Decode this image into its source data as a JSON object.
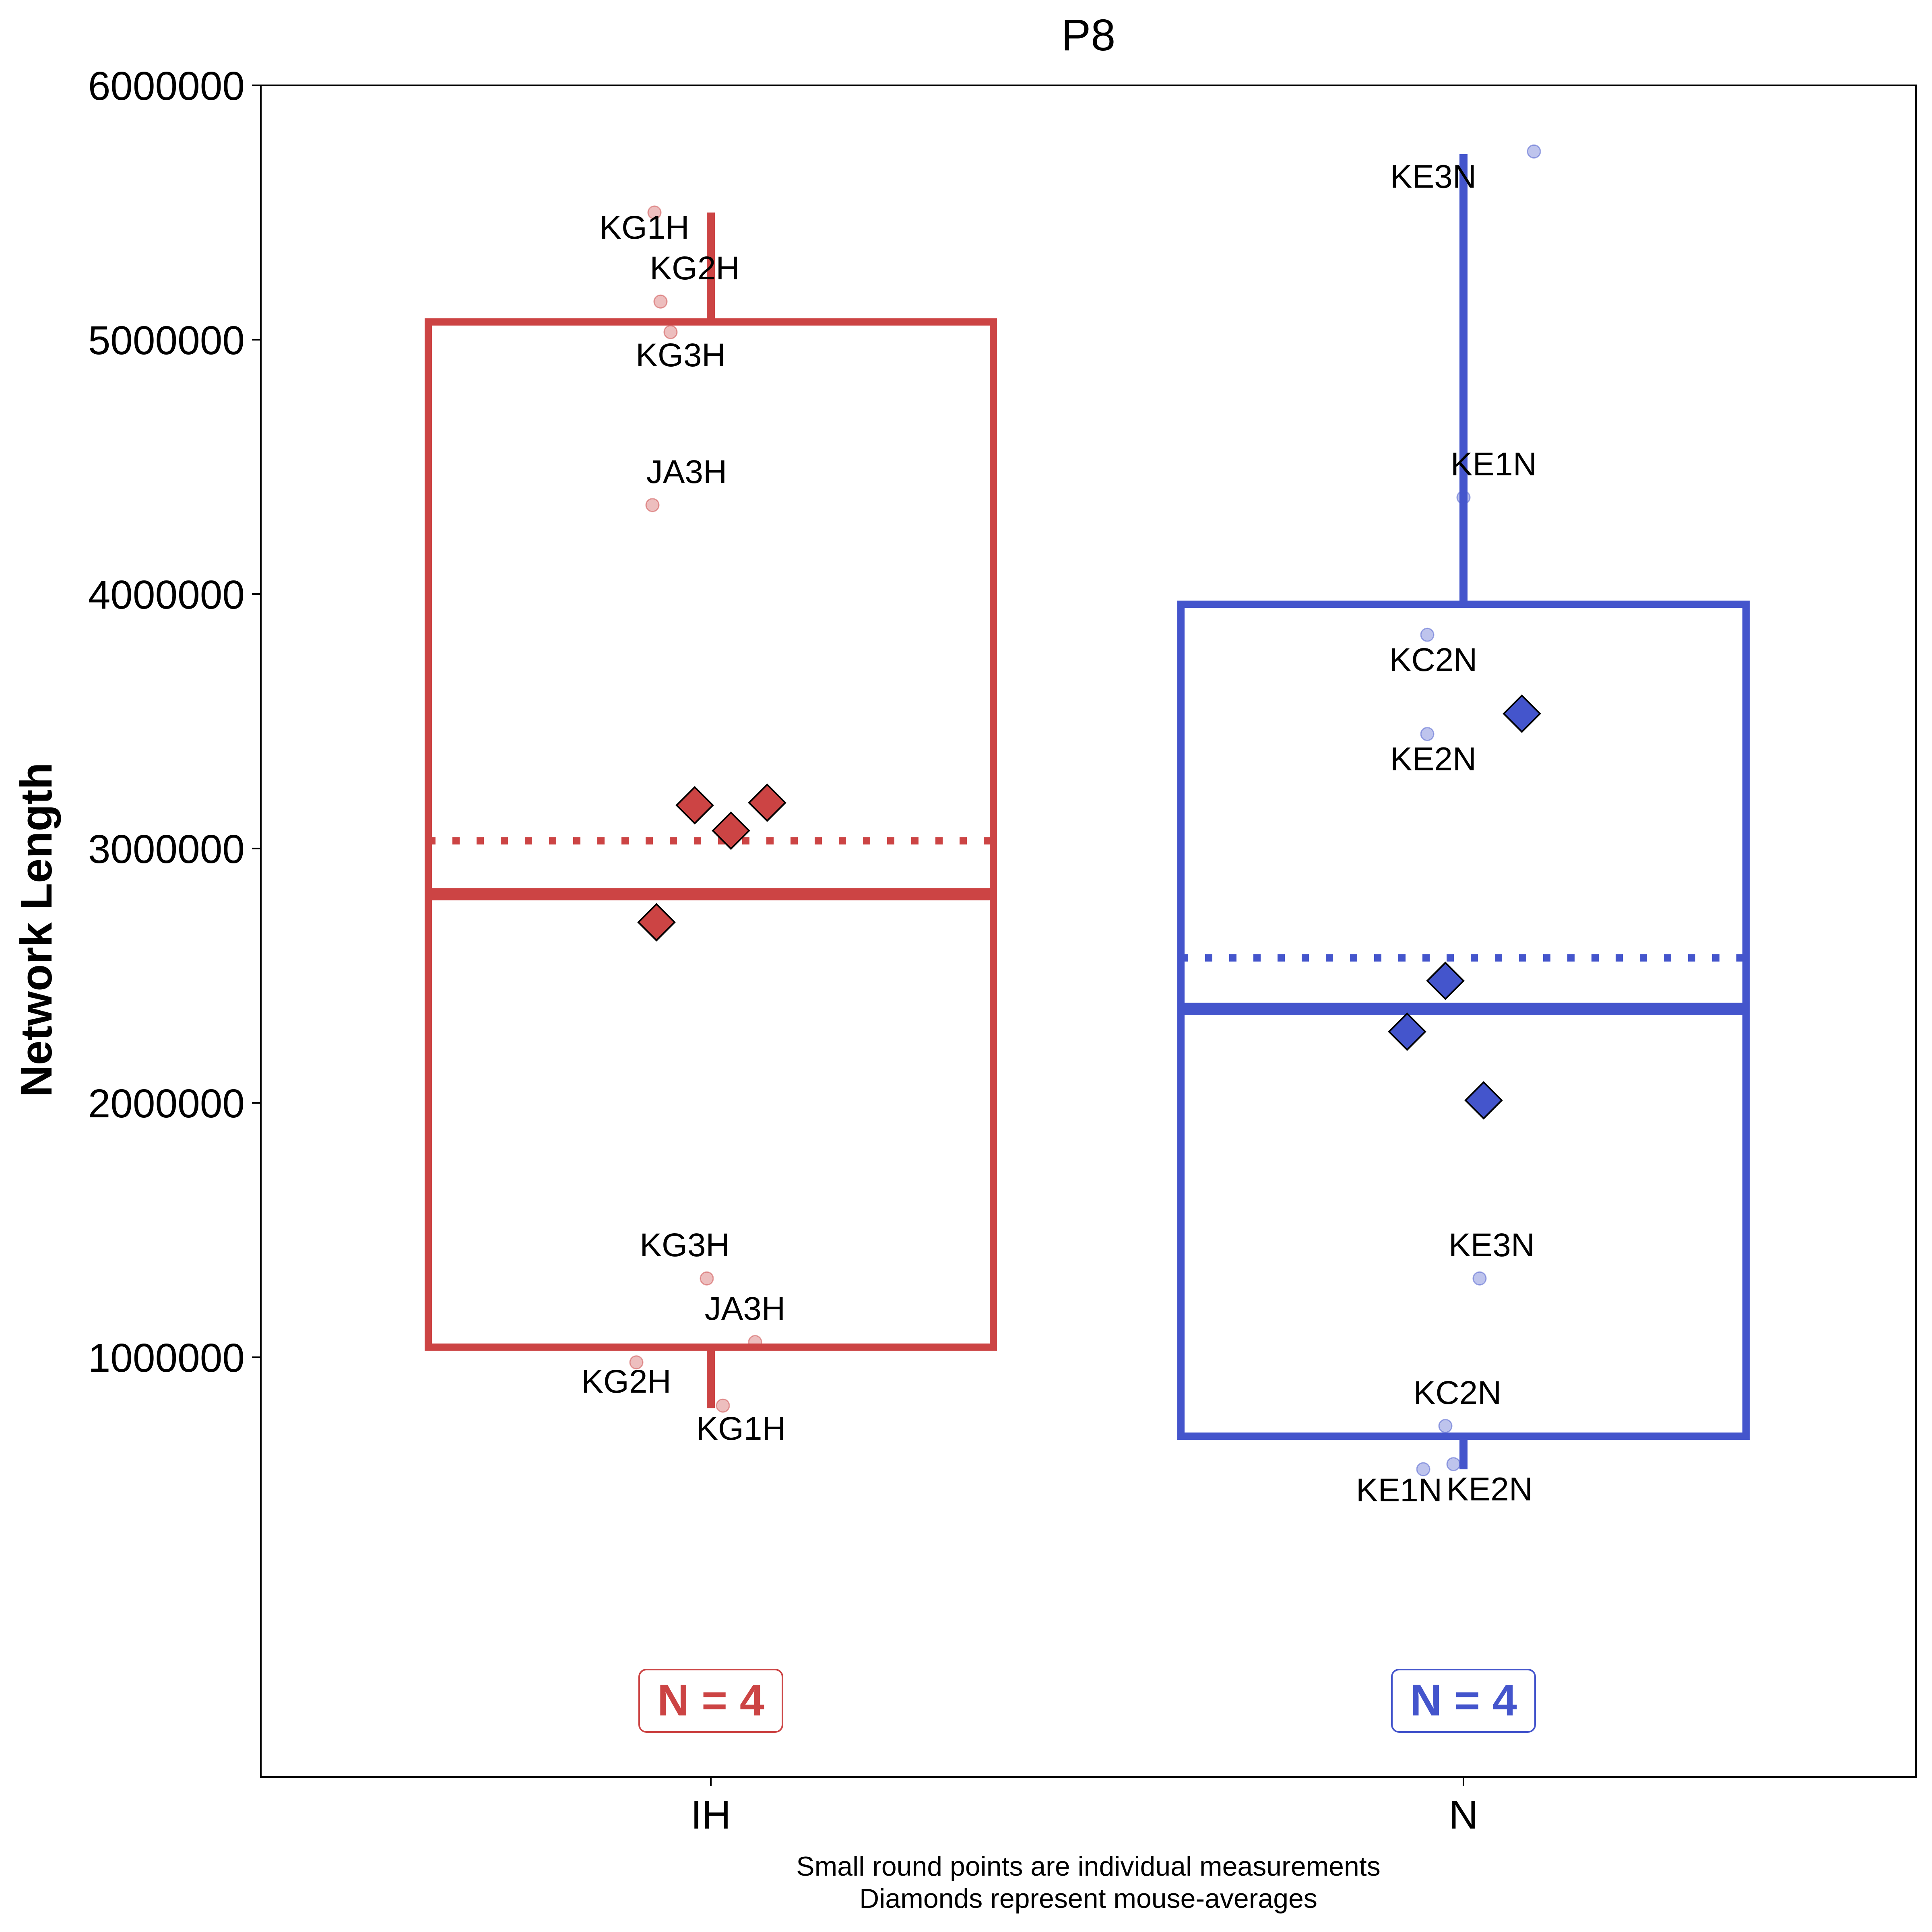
{
  "chart_data": {
    "type": "box",
    "title": "P8",
    "xlabel": "",
    "ylabel": "Network Length",
    "ylim": [
      -650000,
      6000000
    ],
    "yticks": [
      1000000,
      2000000,
      3000000,
      4000000,
      5000000,
      6000000
    ],
    "ytick_labels": [
      "1000000",
      "2000000",
      "3000000",
      "4000000",
      "5000000",
      "6000000"
    ],
    "categories": [
      "IH",
      "N"
    ],
    "grid": false,
    "footnote": [
      "Small round points are individual measurements",
      "Diamonds represent mouse-averages"
    ],
    "groups": [
      {
        "name": "IH",
        "color": "#CC4444",
        "q1": 1040000,
        "median": 2820000,
        "q3": 5070000,
        "whisker_low": 800000,
        "whisker_high": 5500000,
        "mean": 3030000,
        "n_label": "N = 4",
        "means": [
          3170000,
          3070000,
          3180000,
          2710000
        ],
        "points": [
          {
            "label": "KG1H",
            "value": 5500000
          },
          {
            "label": "KG2H",
            "value": 5150000
          },
          {
            "label": "KG3H",
            "value": 5030000
          },
          {
            "label": "JA3H",
            "value": 4350000
          },
          {
            "label": "KG3H",
            "value": 1310000
          },
          {
            "label": "JA3H",
            "value": 1060000
          },
          {
            "label": "KG2H",
            "value": 980000
          },
          {
            "label": "KG1H",
            "value": 810000
          }
        ]
      },
      {
        "name": "N",
        "color": "#4455CC",
        "q1": 690000,
        "median": 2370000,
        "q3": 3960000,
        "whisker_low": 560000,
        "whisker_high": 5730000,
        "mean": 2570000,
        "n_label": "N = 4",
        "means": [
          3530000,
          2480000,
          2280000,
          2010000
        ],
        "points": [
          {
            "label": "KE3N",
            "value": 5740000
          },
          {
            "label": "KE1N",
            "value": 4380000
          },
          {
            "label": "KC2N",
            "value": 3840000
          },
          {
            "label": "KE2N",
            "value": 3450000
          },
          {
            "label": "KE3N",
            "value": 1310000
          },
          {
            "label": "KC2N",
            "value": 730000
          },
          {
            "label": "KE1N",
            "value": 560000
          },
          {
            "label": "KE2N",
            "value": 580000
          }
        ]
      }
    ]
  }
}
